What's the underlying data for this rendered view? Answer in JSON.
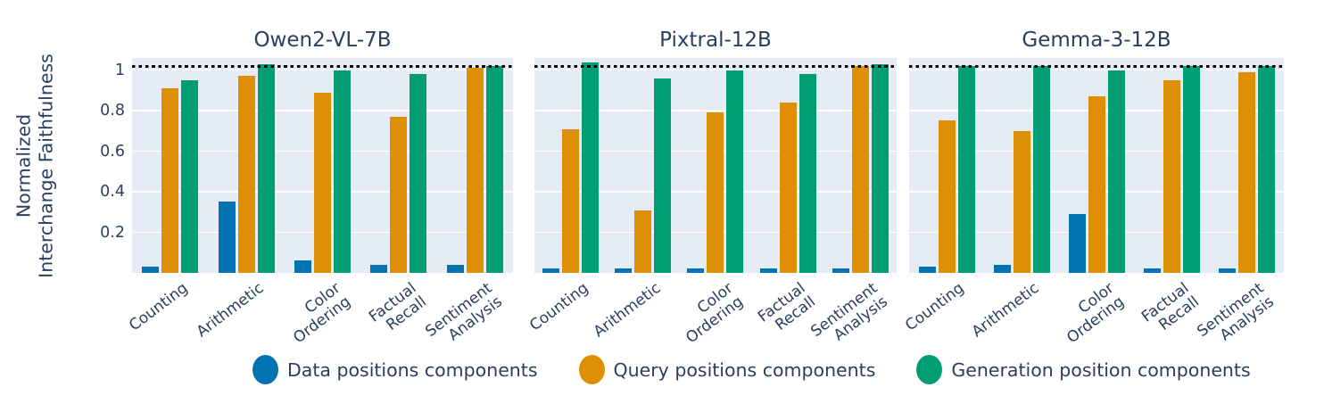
{
  "chart_data": {
    "type": "bar",
    "categories": [
      "Counting",
      "Arithmetic",
      "Color\nOrdering",
      "Factual\nRecall",
      "Sentiment\nAnalysis"
    ],
    "series": [
      {
        "id": "data",
        "name": "Data positions components",
        "color": "#0173b2"
      },
      {
        "id": "query",
        "name": "Query positions components",
        "color": "#de8f05"
      },
      {
        "id": "generation",
        "name": "Generation position components",
        "color": "#029e73"
      }
    ],
    "panels": [
      {
        "title": "Owen2-VL-7B",
        "values": {
          "data": [
            0.03,
            0.35,
            0.06,
            0.04,
            0.04
          ],
          "query": [
            0.91,
            0.97,
            0.89,
            0.77,
            1.01
          ],
          "generation": [
            0.95,
            1.03,
            1.0,
            0.98,
            1.02
          ]
        }
      },
      {
        "title": "Pixtral-12B",
        "values": {
          "data": [
            0.02,
            0.02,
            0.02,
            0.02,
            0.02
          ],
          "query": [
            0.71,
            0.31,
            0.79,
            0.84,
            1.02
          ],
          "generation": [
            1.04,
            0.96,
            1.0,
            0.98,
            1.03
          ]
        }
      },
      {
        "title": "Gemma-3-12B",
        "values": {
          "data": [
            0.03,
            0.04,
            0.29,
            0.02,
            0.02
          ],
          "query": [
            0.75,
            0.7,
            0.87,
            0.95,
            0.99
          ],
          "generation": [
            1.02,
            1.02,
            1.0,
            1.02,
            1.02
          ]
        }
      }
    ],
    "ylabel": "Normalized\nInterchange Faithfulness",
    "yticks": [
      {
        "label": "1",
        "value": 1
      },
      {
        "label": "0.8",
        "value": 0.8
      },
      {
        "label": "0.6",
        "value": 0.6
      },
      {
        "label": "0.4",
        "value": 0.4
      },
      {
        "label": "0.2",
        "value": 0.2
      }
    ],
    "ylim": [
      0,
      1.06
    ],
    "reference_line": 1.02,
    "grid": true,
    "legend_position": "bottom",
    "plot_bg": "#e5ecf6",
    "grid_color": "#ffffff",
    "reference_line_color": "#000000",
    "text_color": "#2a3f5f"
  }
}
